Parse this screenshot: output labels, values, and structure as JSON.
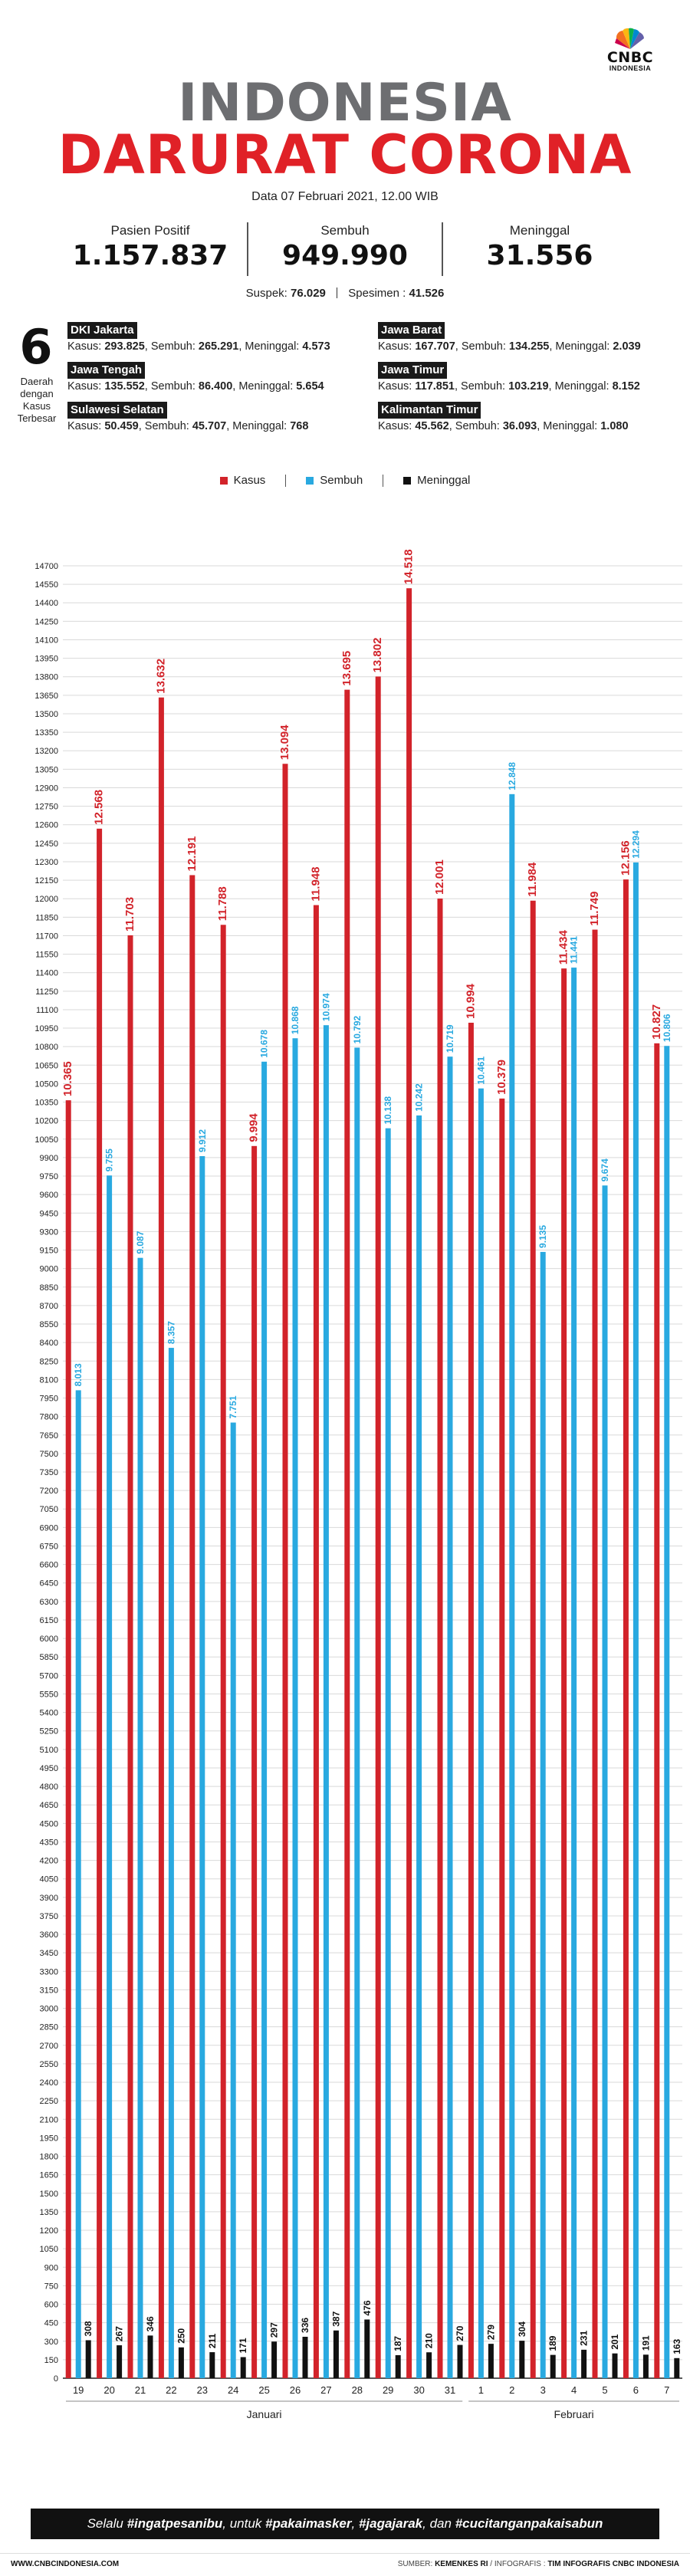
{
  "brand": {
    "name": "CNBC",
    "sub": "INDONESIA"
  },
  "header": {
    "title_line1": "INDONESIA",
    "title_line2": "DARURAT CORONA",
    "dateline": "Data 07 Februari 2021, 12.00 WIB"
  },
  "stats": [
    {
      "label": "Pasien Positif",
      "value": "1.157.837"
    },
    {
      "label": "Sembuh",
      "value": "949.990"
    },
    {
      "label": "Meninggal",
      "value": "31.556"
    }
  ],
  "substats": {
    "suspek_label": "Suspek:",
    "suspek_value": "76.029",
    "spesimen_label": "Spesimen :",
    "spesimen_value": "41.526"
  },
  "regions_block": {
    "count": "6",
    "caption_lines": [
      "Daerah",
      "dengan",
      "Kasus",
      "Terbesar"
    ],
    "kasus_label": "Kasus: ",
    "sembuh_label": ", Sembuh: ",
    "meninggal_label": ", Meninggal: ",
    "items": [
      {
        "name": "DKI Jakarta",
        "kasus": "293.825",
        "sembuh": "265.291",
        "meninggal": "4.573"
      },
      {
        "name": "Jawa Tengah",
        "kasus": "135.552",
        "sembuh": "86.400",
        "meninggal": "5.654"
      },
      {
        "name": "Sulawesi Selatan",
        "kasus": "50.459",
        "sembuh": "45.707",
        "meninggal": "768"
      },
      {
        "name": "Jawa Barat",
        "kasus": "167.707",
        "sembuh": "134.255",
        "meninggal": "2.039"
      },
      {
        "name": "Jawa Timur",
        "kasus": "117.851",
        "sembuh": "103.219",
        "meninggal": "8.152"
      },
      {
        "name": "Kalimantan Timur",
        "kasus": "45.562",
        "sembuh": "36.093",
        "meninggal": "1.080"
      }
    ]
  },
  "legend": {
    "kasus": "Kasus",
    "sembuh": "Sembuh",
    "meninggal": "Meninggal"
  },
  "colors": {
    "kasus": "#d2232a",
    "sembuh": "#29a9e0",
    "meninggal": "#111111",
    "grid": "#d9d9d9",
    "axis": "#222222"
  },
  "chart_data": {
    "type": "bar",
    "categories": [
      "19",
      "20",
      "21",
      "22",
      "23",
      "24",
      "25",
      "26",
      "27",
      "28",
      "29",
      "30",
      "31",
      "1",
      "2",
      "3",
      "4",
      "5",
      "6",
      "7"
    ],
    "month_groups": [
      {
        "label": "Januari",
        "from": 0,
        "to": 12
      },
      {
        "label": "Februari",
        "from": 13,
        "to": 19
      }
    ],
    "series": [
      {
        "name": "Kasus",
        "values": [
          10365,
          12568,
          11703,
          13632,
          12191,
          11788,
          9994,
          13094,
          11948,
          13695,
          13802,
          14518,
          12001,
          10994,
          10379,
          11984,
          11434,
          11749,
          12156,
          10827
        ],
        "labels": [
          "10.365",
          "12.568",
          "11.703",
          "13.632",
          "12.191",
          "11.788",
          "9.994",
          "13.094",
          "11.948",
          "13.695",
          "13.802",
          "14.518",
          "12.001",
          "10.994",
          "10.379",
          "11.984",
          "11.434",
          "11.749",
          "12.156",
          "10.827"
        ]
      },
      {
        "name": "Sembuh",
        "values": [
          8013,
          9755,
          9087,
          8357,
          9912,
          7751,
          10678,
          10868,
          10974,
          10792,
          10138,
          10242,
          10719,
          10461,
          12848,
          9135,
          11441,
          9674,
          12294,
          10806
        ],
        "labels": [
          "8.013",
          "9.755",
          "9.087",
          "8.357",
          "9.912",
          "7.751",
          "10.678",
          "10.868",
          "10.974",
          "10.792",
          "10.138",
          "10.242",
          "10.719",
          "10.461",
          "12.848",
          "9.135",
          "11.441",
          "9.674",
          "12.294",
          "10.806"
        ]
      },
      {
        "name": "Meninggal",
        "values": [
          308,
          267,
          346,
          250,
          211,
          171,
          297,
          336,
          387,
          476,
          187,
          210,
          270,
          279,
          304,
          189,
          231,
          201,
          191,
          163
        ],
        "labels": [
          "308",
          "267",
          "346",
          "250",
          "211",
          "171",
          "297",
          "336",
          "387",
          "476",
          "187",
          "210",
          "270",
          "279",
          "304",
          "189",
          "231",
          "201",
          "191",
          "163"
        ]
      }
    ],
    "ylim": [
      0,
      14700
    ],
    "ytick_step": 150,
    "grid": true
  },
  "footer": {
    "quote_pre": "Selalu ",
    "quote_tag1": "#ingatpesanibu",
    "quote_mid1": ", untuk ",
    "quote_tag2": "#pakaimasker",
    "quote_mid2": ", ",
    "quote_tag3": "#jagajarak",
    "quote_mid3": ", dan ",
    "quote_tag4": "#cucitanganpakaisabun",
    "website": "WWW.CNBCINDONESIA.COM",
    "source_label": "SUMBER: ",
    "source_value": "KEMENKES RI",
    "infografis_label": " / INFOGRAFIS : ",
    "infografis_value": "TIM INFOGRAFIS CNBC INDONESIA"
  }
}
